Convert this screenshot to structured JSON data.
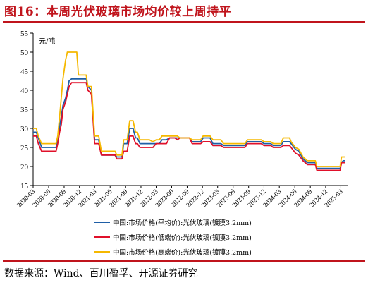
{
  "header": {
    "title": "图16：本周光伏玻璃市场均价较上周持平"
  },
  "footer": {
    "source": "数据来源：Wind、百川盈孚、开源证券研究"
  },
  "colors": {
    "accent": "#c0141c",
    "avg": "#1f5fa6",
    "low": "#e0102a",
    "high": "#f5b800"
  },
  "chart_data": {
    "type": "line",
    "ylabel": "元/吨",
    "ylim": [
      15,
      55
    ],
    "yticks": [
      15,
      20,
      25,
      30,
      35,
      40,
      45,
      50,
      55
    ],
    "xlim": [
      "2020-03-01",
      "2025-04-10"
    ],
    "xticks": [
      "2020-03",
      "2020-06",
      "2020-09",
      "2020-12",
      "2021-03",
      "2021-06",
      "2021-09",
      "2021-12",
      "2022-03",
      "2022-06",
      "2022-09",
      "2022-12",
      "2023-03",
      "2023-06",
      "2023-09",
      "2023-12",
      "2024-03",
      "2024-06",
      "2024-09",
      "2024-12",
      "2025-03"
    ],
    "legend_position": "bottom",
    "series": [
      {
        "name": "中国:市场价格(平均价):光伏玻璃(镀膜3.2mm)",
        "color": "#1f5fa6",
        "points": [
          [
            "2020-03-01",
            29
          ],
          [
            "2020-03-20",
            29
          ],
          [
            "2020-04-01",
            27.5
          ],
          [
            "2020-04-20",
            25
          ],
          [
            "2020-07-15",
            25
          ],
          [
            "2020-07-25",
            27
          ],
          [
            "2020-08-05",
            30.5
          ],
          [
            "2020-08-15",
            33
          ],
          [
            "2020-08-25",
            36
          ],
          [
            "2020-09-10",
            38
          ],
          [
            "2020-09-20",
            40
          ],
          [
            "2020-10-01",
            42.5
          ],
          [
            "2020-10-15",
            43
          ],
          [
            "2021-01-10",
            43
          ],
          [
            "2021-01-20",
            41
          ],
          [
            "2021-02-10",
            40
          ],
          [
            "2021-03-01",
            27
          ],
          [
            "2021-03-25",
            27
          ],
          [
            "2021-04-10",
            23
          ],
          [
            "2021-06-30",
            23
          ],
          [
            "2021-07-10",
            22.5
          ],
          [
            "2021-08-10",
            22.5
          ],
          [
            "2021-08-20",
            26
          ],
          [
            "2021-09-10",
            26
          ],
          [
            "2021-09-25",
            30
          ],
          [
            "2021-10-15",
            30
          ],
          [
            "2021-10-30",
            27.5
          ],
          [
            "2021-11-10",
            27.5
          ],
          [
            "2021-11-25",
            26
          ],
          [
            "2022-01-20",
            26
          ],
          [
            "2022-02-10",
            26
          ],
          [
            "2022-03-01",
            26
          ],
          [
            "2022-03-20",
            26
          ],
          [
            "2022-04-05",
            27
          ],
          [
            "2022-05-01",
            27
          ],
          [
            "2022-05-20",
            27.5
          ],
          [
            "2022-06-20",
            27.5
          ],
          [
            "2022-07-05",
            27.5
          ],
          [
            "2022-07-20",
            27.5
          ],
          [
            "2022-09-15",
            27.5
          ],
          [
            "2022-10-01",
            26.5
          ],
          [
            "2022-11-20",
            26.5
          ],
          [
            "2022-12-05",
            27.5
          ],
          [
            "2023-01-15",
            27.5
          ],
          [
            "2023-02-01",
            26
          ],
          [
            "2023-03-20",
            26
          ],
          [
            "2023-04-05",
            25.5
          ],
          [
            "2023-05-15",
            25.5
          ],
          [
            "2023-06-01",
            25.5
          ],
          [
            "2023-08-10",
            25.5
          ],
          [
            "2023-08-25",
            26.5
          ],
          [
            "2023-11-15",
            26.5
          ],
          [
            "2023-12-01",
            26
          ],
          [
            "2024-01-10",
            26
          ],
          [
            "2024-01-25",
            25.5
          ],
          [
            "2024-03-10",
            25.5
          ],
          [
            "2024-03-25",
            26.5
          ],
          [
            "2024-05-01",
            26.5
          ],
          [
            "2024-05-10",
            26
          ],
          [
            "2024-06-05",
            24.5
          ],
          [
            "2024-06-25",
            24
          ],
          [
            "2024-07-20",
            22
          ],
          [
            "2024-08-15",
            21
          ],
          [
            "2024-10-01",
            21
          ],
          [
            "2024-10-10",
            19.5
          ],
          [
            "2025-02-15",
            19.5
          ],
          [
            "2025-02-25",
            19.5
          ],
          [
            "2025-03-05",
            21
          ],
          [
            "2025-03-15",
            21.5
          ],
          [
            "2025-03-28",
            21.5
          ]
        ]
      },
      {
        "name": "中国:市场价格(低端价):光伏玻璃(镀膜3.2mm)",
        "color": "#e0102a",
        "points": [
          [
            "2020-03-01",
            28
          ],
          [
            "2020-03-20",
            28
          ],
          [
            "2020-04-01",
            26
          ],
          [
            "2020-04-20",
            24
          ],
          [
            "2020-07-15",
            24
          ],
          [
            "2020-07-25",
            26
          ],
          [
            "2020-08-05",
            29
          ],
          [
            "2020-08-15",
            31
          ],
          [
            "2020-08-25",
            35
          ],
          [
            "2020-09-10",
            37
          ],
          [
            "2020-09-20",
            39
          ],
          [
            "2020-10-01",
            41
          ],
          [
            "2020-10-15",
            42
          ],
          [
            "2021-01-10",
            42
          ],
          [
            "2021-01-20",
            40
          ],
          [
            "2021-02-10",
            39
          ],
          [
            "2021-03-01",
            26
          ],
          [
            "2021-03-25",
            26
          ],
          [
            "2021-04-10",
            23
          ],
          [
            "2021-06-30",
            23
          ],
          [
            "2021-07-10",
            22
          ],
          [
            "2021-08-10",
            22
          ],
          [
            "2021-08-20",
            24
          ],
          [
            "2021-09-10",
            24
          ],
          [
            "2021-09-25",
            28
          ],
          [
            "2021-10-15",
            28
          ],
          [
            "2021-10-30",
            26
          ],
          [
            "2021-11-10",
            26
          ],
          [
            "2021-11-25",
            25
          ],
          [
            "2022-01-20",
            25
          ],
          [
            "2022-02-10",
            25
          ],
          [
            "2022-03-01",
            26
          ],
          [
            "2022-03-20",
            26
          ],
          [
            "2022-04-05",
            26
          ],
          [
            "2022-05-01",
            26
          ],
          [
            "2022-05-20",
            27.5
          ],
          [
            "2022-06-20",
            27.5
          ],
          [
            "2022-07-05",
            27
          ],
          [
            "2022-07-20",
            27.5
          ],
          [
            "2022-09-15",
            27.5
          ],
          [
            "2022-10-01",
            26
          ],
          [
            "2022-11-20",
            26
          ],
          [
            "2022-12-05",
            26.5
          ],
          [
            "2023-01-15",
            26.5
          ],
          [
            "2023-02-01",
            25.5
          ],
          [
            "2023-03-20",
            25.5
          ],
          [
            "2023-04-05",
            25
          ],
          [
            "2023-05-15",
            25
          ],
          [
            "2023-06-01",
            25
          ],
          [
            "2023-08-10",
            25
          ],
          [
            "2023-08-25",
            26
          ],
          [
            "2023-11-15",
            26
          ],
          [
            "2023-12-01",
            25.5
          ],
          [
            "2024-01-10",
            25.5
          ],
          [
            "2024-01-25",
            25
          ],
          [
            "2024-03-10",
            25
          ],
          [
            "2024-03-25",
            25.5
          ],
          [
            "2024-05-01",
            25.5
          ],
          [
            "2024-05-10",
            25
          ],
          [
            "2024-06-05",
            23.5
          ],
          [
            "2024-06-25",
            23
          ],
          [
            "2024-07-20",
            21.5
          ],
          [
            "2024-08-15",
            20.5
          ],
          [
            "2024-10-01",
            20.5
          ],
          [
            "2024-10-10",
            19
          ],
          [
            "2025-02-15",
            19
          ],
          [
            "2025-02-25",
            19
          ],
          [
            "2025-03-05",
            21
          ],
          [
            "2025-03-15",
            21
          ],
          [
            "2025-03-28",
            21
          ]
        ]
      },
      {
        "name": "中国:市场价格(高端价):光伏玻璃(镀膜3.2mm)",
        "color": "#f5b800",
        "points": [
          [
            "2020-03-01",
            30
          ],
          [
            "2020-03-20",
            30
          ],
          [
            "2020-04-01",
            28
          ],
          [
            "2020-04-20",
            26
          ],
          [
            "2020-07-15",
            26
          ],
          [
            "2020-07-25",
            28
          ],
          [
            "2020-08-05",
            33
          ],
          [
            "2020-08-15",
            38
          ],
          [
            "2020-08-25",
            43
          ],
          [
            "2020-09-10",
            48
          ],
          [
            "2020-09-20",
            50
          ],
          [
            "2020-10-01",
            50
          ],
          [
            "2020-10-15",
            50
          ],
          [
            "2020-11-15",
            50
          ],
          [
            "2020-11-25",
            44
          ],
          [
            "2021-01-10",
            44
          ],
          [
            "2021-01-20",
            41
          ],
          [
            "2021-02-10",
            41
          ],
          [
            "2021-03-01",
            28
          ],
          [
            "2021-03-25",
            28
          ],
          [
            "2021-04-10",
            24
          ],
          [
            "2021-06-30",
            24
          ],
          [
            "2021-07-10",
            23
          ],
          [
            "2021-08-10",
            23
          ],
          [
            "2021-08-20",
            27
          ],
          [
            "2021-09-10",
            27
          ],
          [
            "2021-09-25",
            32
          ],
          [
            "2021-10-15",
            32
          ],
          [
            "2021-10-30",
            29
          ],
          [
            "2021-11-10",
            29
          ],
          [
            "2021-11-25",
            27
          ],
          [
            "2022-01-20",
            27
          ],
          [
            "2022-02-10",
            26.5
          ],
          [
            "2022-03-01",
            27
          ],
          [
            "2022-03-20",
            27
          ],
          [
            "2022-04-05",
            28
          ],
          [
            "2022-05-01",
            28
          ],
          [
            "2022-05-20",
            28
          ],
          [
            "2022-06-20",
            28
          ],
          [
            "2022-07-05",
            28
          ],
          [
            "2022-07-20",
            27.5
          ],
          [
            "2022-09-15",
            27.5
          ],
          [
            "2022-10-01",
            27
          ],
          [
            "2022-11-20",
            27
          ],
          [
            "2022-12-05",
            28
          ],
          [
            "2023-01-15",
            28
          ],
          [
            "2023-02-01",
            27
          ],
          [
            "2023-03-20",
            27
          ],
          [
            "2023-04-05",
            26
          ],
          [
            "2023-05-15",
            26
          ],
          [
            "2023-06-01",
            26
          ],
          [
            "2023-08-10",
            26
          ],
          [
            "2023-08-25",
            27
          ],
          [
            "2023-11-15",
            27
          ],
          [
            "2023-12-01",
            26.5
          ],
          [
            "2024-01-10",
            26.5
          ],
          [
            "2024-01-25",
            26
          ],
          [
            "2024-03-10",
            26
          ],
          [
            "2024-03-25",
            27.5
          ],
          [
            "2024-05-01",
            27.5
          ],
          [
            "2024-05-10",
            26.5
          ],
          [
            "2024-06-05",
            25
          ],
          [
            "2024-06-25",
            24.5
          ],
          [
            "2024-07-20",
            22.5
          ],
          [
            "2024-08-15",
            21.5
          ],
          [
            "2024-10-01",
            21.5
          ],
          [
            "2024-10-10",
            20
          ],
          [
            "2025-02-15",
            20
          ],
          [
            "2025-02-25",
            20
          ],
          [
            "2025-03-05",
            22.5
          ],
          [
            "2025-03-15",
            22.5
          ],
          [
            "2025-03-28",
            22.5
          ]
        ]
      }
    ]
  }
}
